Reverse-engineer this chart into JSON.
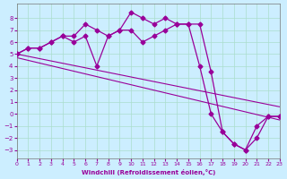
{
  "xlabel": "Windchill (Refroidissement éolien,°C)",
  "ylabel": "",
  "xlim": [
    0,
    23
  ],
  "ylim": [
    -3.5,
    9
  ],
  "yticks": [
    8,
    7,
    6,
    5,
    4,
    3,
    2,
    1,
    0,
    -1,
    -2,
    -3
  ],
  "xticks": [
    0,
    1,
    2,
    3,
    4,
    5,
    6,
    7,
    8,
    9,
    10,
    11,
    12,
    13,
    14,
    15,
    16,
    17,
    18,
    19,
    20,
    21,
    22,
    23
  ],
  "bg_color": "#cceeff",
  "grid_color": "#aaddcc",
  "line_color": "#990099",
  "hours": [
    0,
    1,
    2,
    3,
    4,
    5,
    6,
    7,
    8,
    9,
    10,
    11,
    12,
    13,
    14,
    15,
    16,
    17,
    18,
    19,
    20,
    21,
    22,
    23
  ],
  "temp": [
    5.0,
    5.5,
    5.5,
    6.0,
    6.5,
    6.5,
    7.5,
    7.0,
    6.5,
    7.0,
    8.5,
    8.0,
    7.5,
    8.0,
    7.5,
    7.5,
    7.5,
    3.5,
    -1.5,
    -2.5,
    -3.0,
    -2.0,
    -0.2,
    -0.2
  ],
  "windchill": [
    5.0,
    5.5,
    5.5,
    6.0,
    6.5,
    6.0,
    6.5,
    4.0,
    6.5,
    7.0,
    7.0,
    6.0,
    6.5,
    7.0,
    7.5,
    7.5,
    4.0,
    0.0,
    -1.5,
    -2.5,
    -3.0,
    -1.0,
    -0.2,
    -0.2
  ],
  "trend_start_y": 5.0,
  "trend_end_y": -0.2
}
